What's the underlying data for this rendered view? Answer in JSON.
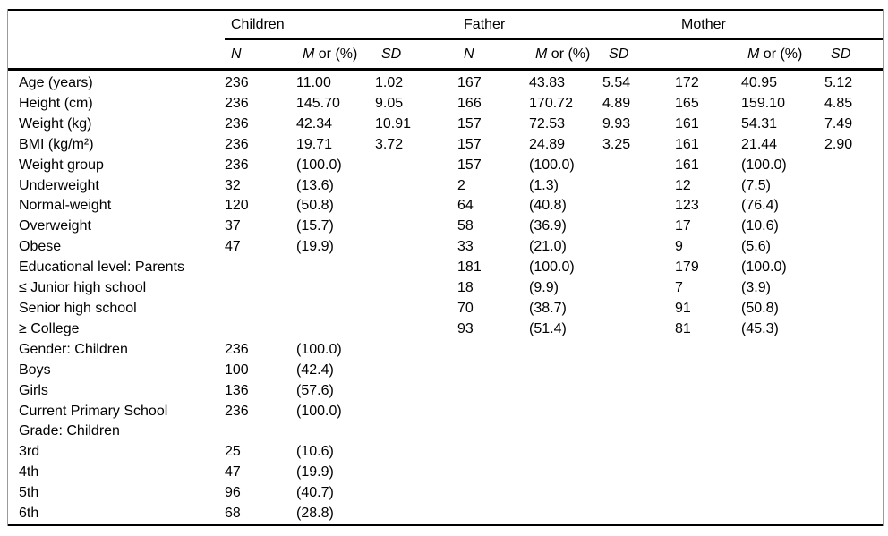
{
  "table": {
    "groups": [
      {
        "label": "Children",
        "subs": [
          {
            "i": "N",
            "r": ""
          },
          {
            "i": "M",
            "r": " or (%)"
          },
          {
            "i": "SD",
            "r": ""
          }
        ]
      },
      {
        "label": "Father",
        "subs": [
          {
            "i": "N",
            "r": ""
          },
          {
            "i": "M",
            "r": " or (%)"
          },
          {
            "i": "SD",
            "r": ""
          }
        ]
      },
      {
        "label": "Mother",
        "subs": [
          {
            "i": "",
            "r": ""
          },
          {
            "i": "M",
            "r": " or (%)"
          },
          {
            "i": "SD",
            "r": ""
          }
        ]
      }
    ],
    "rows": [
      {
        "label": "Age (years)",
        "cells": [
          "236",
          "11.00",
          "1.02",
          "167",
          "43.83",
          "5.54",
          "172",
          "40.95",
          "5.12"
        ]
      },
      {
        "label": "Height (cm)",
        "cells": [
          "236",
          "145.70",
          "9.05",
          "166",
          "170.72",
          "4.89",
          "165",
          "159.10",
          "4.85"
        ]
      },
      {
        "label": "Weight (kg)",
        "cells": [
          "236",
          "42.34",
          "10.91",
          "157",
          "72.53",
          "9.93",
          "161",
          "54.31",
          "7.49"
        ]
      },
      {
        "label": "BMI (kg/m²)",
        "cells": [
          "236",
          "19.71",
          "3.72",
          "157",
          "24.89",
          "3.25",
          "161",
          "21.44",
          "2.90"
        ]
      },
      {
        "label": "Weight group",
        "cells": [
          "236",
          "(100.0)",
          "",
          "157",
          "(100.0)",
          "",
          "161",
          "(100.0)",
          ""
        ]
      },
      {
        "label": "Underweight",
        "cells": [
          "32",
          "(13.6)",
          "",
          "2",
          "(1.3)",
          "",
          "12",
          "(7.5)",
          ""
        ]
      },
      {
        "label": "Normal-weight",
        "cells": [
          "120",
          "(50.8)",
          "",
          "64",
          "(40.8)",
          "",
          "123",
          "(76.4)",
          ""
        ]
      },
      {
        "label": "Overweight",
        "cells": [
          "37",
          "(15.7)",
          "",
          "58",
          "(36.9)",
          "",
          "17",
          "(10.6)",
          ""
        ]
      },
      {
        "label": "Obese",
        "cells": [
          "47",
          "(19.9)",
          "",
          "33",
          "(21.0)",
          "",
          "9",
          "(5.6)",
          ""
        ]
      },
      {
        "label": "Educational level: Parents",
        "cells": [
          "",
          "",
          "",
          "181",
          "(100.0)",
          "",
          "179",
          "(100.0)",
          ""
        ]
      },
      {
        "label": "≤ Junior high school",
        "cells": [
          "",
          "",
          "",
          "18",
          "(9.9)",
          "",
          "7",
          "(3.9)",
          ""
        ]
      },
      {
        "label": "Senior high school",
        "cells": [
          "",
          "",
          "",
          "70",
          "(38.7)",
          "",
          "91",
          "(50.8)",
          ""
        ]
      },
      {
        "label": "≥ College",
        "cells": [
          "",
          "",
          "",
          "93",
          "(51.4)",
          "",
          "81",
          "(45.3)",
          ""
        ]
      },
      {
        "label": "Gender: Children",
        "cells": [
          "236",
          "(100.0)",
          "",
          "",
          "",
          "",
          "",
          "",
          ""
        ]
      },
      {
        "label": "Boys",
        "cells": [
          "100",
          "(42.4)",
          "",
          "",
          "",
          "",
          "",
          "",
          ""
        ]
      },
      {
        "label": "Girls",
        "cells": [
          "136",
          "(57.6)",
          "",
          "",
          "",
          "",
          "",
          "",
          ""
        ]
      },
      {
        "label": "Current Primary School\nGrade: Children",
        "cells": [
          "236",
          "(100.0)",
          "",
          "",
          "",
          "",
          "",
          "",
          ""
        ]
      },
      {
        "label": "3rd",
        "cells": [
          "25",
          "(10.6)",
          "",
          "",
          "",
          "",
          "",
          "",
          ""
        ]
      },
      {
        "label": "4th",
        "cells": [
          "47",
          "(19.9)",
          "",
          "",
          "",
          "",
          "",
          "",
          ""
        ]
      },
      {
        "label": "5th",
        "cells": [
          "96",
          "(40.7)",
          "",
          "",
          "",
          "",
          "",
          "",
          ""
        ]
      },
      {
        "label": "6th",
        "cells": [
          "68",
          "(28.8)",
          "",
          "",
          "",
          "",
          "",
          "",
          ""
        ]
      }
    ]
  }
}
